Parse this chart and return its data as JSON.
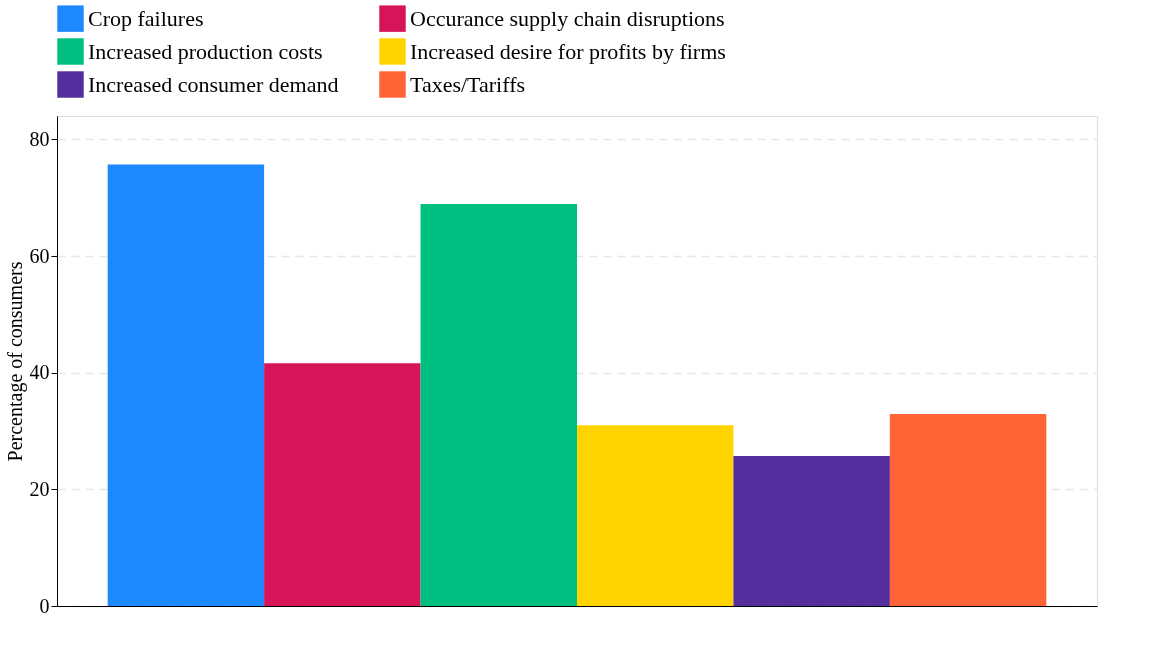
{
  "chart_data": {
    "type": "bar",
    "ylabel": "Percentage of consumers",
    "categories": [
      null
    ],
    "series": [
      {
        "name": "Crop failures",
        "color": "#1e88ff",
        "values": [
          75.7
        ]
      },
      {
        "name": "Occurance supply chain disruptions",
        "color": "#d81459",
        "values": [
          41.6
        ]
      },
      {
        "name": "Increased production costs",
        "color": "#00c081",
        "values": [
          68.9
        ]
      },
      {
        "name": "Increased desire for profits by firms",
        "color": "#ffd400",
        "values": [
          31.0
        ]
      },
      {
        "name": "Increased consumer demand",
        "color": "#532e9c",
        "values": [
          25.7
        ]
      },
      {
        "name": "Taxes/Tariffs",
        "color": "#ff6437",
        "values": [
          32.9
        ]
      }
    ],
    "ylim": [
      0,
      84
    ],
    "yticks": [
      0,
      20,
      40,
      60,
      80
    ],
    "grid": "y",
    "legend": "top",
    "tick_labels": "y"
  }
}
